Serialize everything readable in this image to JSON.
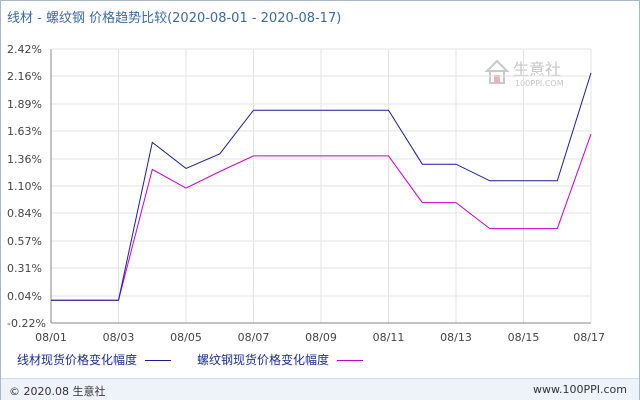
{
  "title": "线材 - 螺纹钢 价格趋势比较(2020-08-01 - 2020-08-17)",
  "logo": {
    "name": "生意社",
    "url": "100PPI.COM"
  },
  "footer": {
    "left": "© 2020.08 生意社",
    "right": "www.100PPI.com"
  },
  "colors": {
    "series1": "#1c1c9c",
    "series2": "#cc00cc",
    "grid": "#e3e3e3",
    "axis": "#888888"
  },
  "chart_data": {
    "type": "line",
    "x": [
      "08/01",
      "08/02",
      "08/03",
      "08/04",
      "08/05",
      "08/06",
      "08/07",
      "08/08",
      "08/09",
      "08/10",
      "08/11",
      "08/12",
      "08/13",
      "08/14",
      "08/15",
      "08/16",
      "08/17"
    ],
    "xticks": [
      "08/01",
      "08/03",
      "08/05",
      "08/07",
      "08/09",
      "08/11",
      "08/13",
      "08/15",
      "08/17"
    ],
    "yticks": [
      "-0.22%",
      "0.04%",
      "0.31%",
      "0.57%",
      "0.84%",
      "1.10%",
      "1.36%",
      "1.63%",
      "1.89%",
      "2.16%",
      "2.42%"
    ],
    "ylim": [
      -0.22,
      2.42
    ],
    "series": [
      {
        "name": "线材现货价格变化幅度",
        "values": [
          0,
          0,
          0,
          1.52,
          1.27,
          1.41,
          1.83,
          1.83,
          1.83,
          1.83,
          1.83,
          1.31,
          1.31,
          1.15,
          1.15,
          1.15,
          2.19
        ]
      },
      {
        "name": "螺纹钢现货价格变化幅度",
        "values": [
          0,
          0,
          0,
          1.26,
          1.08,
          1.24,
          1.39,
          1.39,
          1.39,
          1.39,
          1.39,
          0.94,
          0.94,
          0.69,
          0.69,
          0.69,
          1.6
        ]
      }
    ]
  }
}
